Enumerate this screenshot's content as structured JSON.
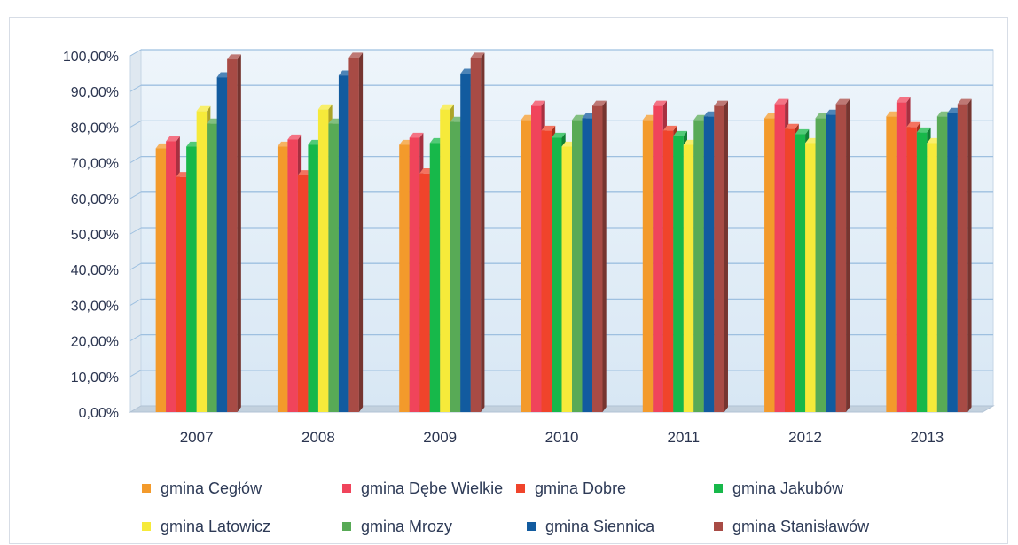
{
  "colors": {
    "gmina Cegłów": "#f39a2b",
    "gmina Dębe Wielkie": "#f0445b",
    "gmina Dobre": "#f0442b",
    "gmina Jakubów": "#17b84a",
    "gmina Latowicz": "#f6ea3a",
    "gmina Mrozy": "#58aa56",
    "gmina Siennica": "#125b9f",
    "gmina Stanisławów": "#a84b45"
  },
  "chart_data": {
    "type": "bar",
    "categories": [
      "2007",
      "2008",
      "2009",
      "2010",
      "2011",
      "2012",
      "2013"
    ],
    "ylim": [
      0,
      100
    ],
    "y_ticks": [
      "0,00%",
      "10,00%",
      "20,00%",
      "30,00%",
      "40,00%",
      "50,00%",
      "60,00%",
      "70,00%",
      "80,00%",
      "90,00%",
      "100,00%"
    ],
    "grid": true,
    "legend_position": "bottom",
    "series": [
      {
        "name": "gmina Cegłów",
        "values": [
          74,
          74.5,
          75,
          82,
          82,
          82.5,
          83
        ]
      },
      {
        "name": "gmina Dębe Wielkie",
        "values": [
          76,
          76.5,
          77,
          86,
          86,
          86.5,
          87
        ]
      },
      {
        "name": "gmina Dobre",
        "values": [
          66,
          66.5,
          67,
          79,
          79,
          79.5,
          80
        ]
      },
      {
        "name": "gmina Jakubów",
        "values": [
          74.5,
          75,
          75.5,
          77,
          77.5,
          78,
          78.5
        ]
      },
      {
        "name": "gmina Latowicz",
        "values": [
          84.5,
          85,
          85,
          74.5,
          75,
          75.5,
          75.5
        ]
      },
      {
        "name": "gmina Mrozy",
        "values": [
          81,
          81,
          81.5,
          82,
          82,
          82.5,
          83
        ]
      },
      {
        "name": "gmina Siennica",
        "values": [
          94,
          94.5,
          95,
          82.5,
          83,
          83.5,
          84
        ]
      },
      {
        "name": "gmina Stanisławów",
        "values": [
          99,
          99.5,
          99.5,
          86,
          86,
          86.5,
          86.5
        ]
      }
    ]
  }
}
